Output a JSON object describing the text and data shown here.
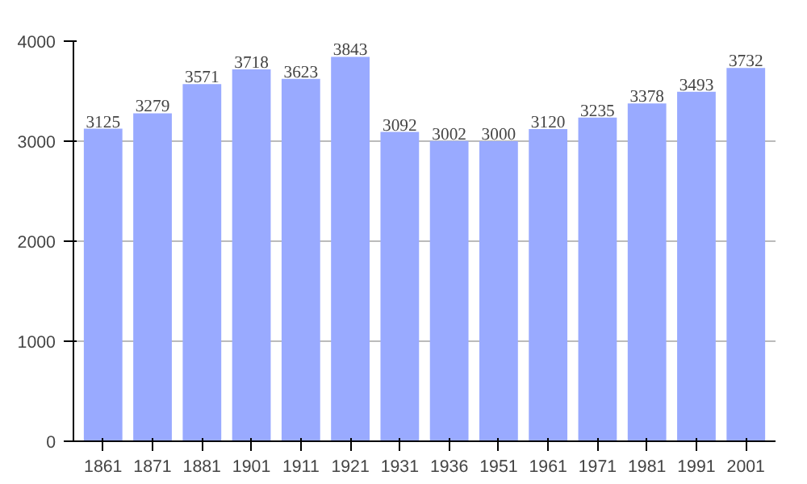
{
  "chart_data": {
    "type": "bar",
    "categories": [
      "1861",
      "1871",
      "1881",
      "1901",
      "1911",
      "1921",
      "1931",
      "1936",
      "1951",
      "1961",
      "1971",
      "1981",
      "1991",
      "2001"
    ],
    "values": [
      3125,
      3279,
      3571,
      3718,
      3623,
      3843,
      3092,
      3002,
      3000,
      3120,
      3235,
      3378,
      3493,
      3732
    ],
    "color": "#99aaff",
    "ylim": [
      0,
      4000
    ],
    "yticks": [
      0,
      1000,
      2000,
      3000,
      4000
    ],
    "grid": "y",
    "data_labels": true
  }
}
